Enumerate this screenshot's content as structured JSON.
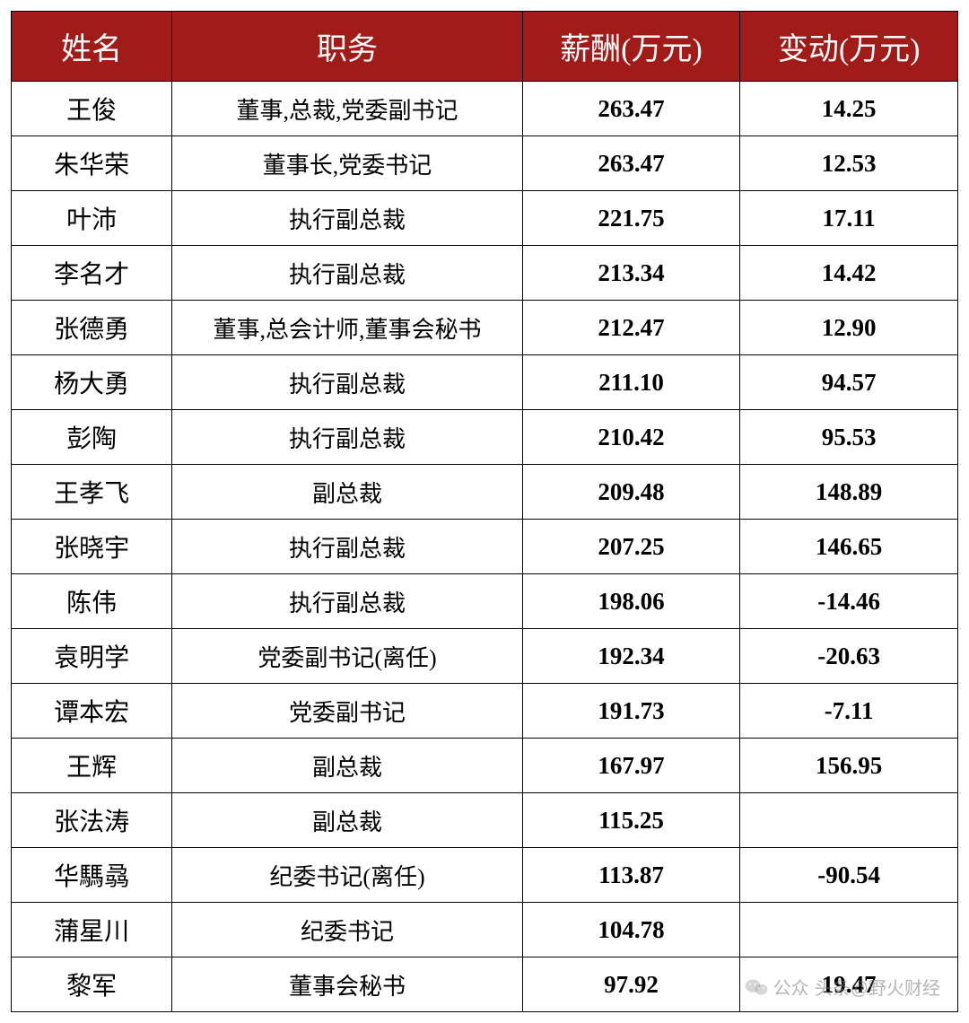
{
  "table": {
    "header_bg": "#a11c18",
    "header_fg": "#ffffff",
    "border_color": "#000000",
    "cell_bg": "#ffffff",
    "header_fontsize": 34,
    "name_fontsize": 28,
    "position_fontsize": 26,
    "number_fontsize": 27,
    "col_widths_pct": [
      17,
      37,
      23,
      23
    ],
    "columns": [
      "姓名",
      "职务",
      "薪酬(万元)",
      "变动(万元)"
    ],
    "rows": [
      {
        "name": "王俊",
        "position": "董事,总裁,党委副书记",
        "salary": "263.47",
        "change": "14.25"
      },
      {
        "name": "朱华荣",
        "position": "董事长,党委书记",
        "salary": "263.47",
        "change": "12.53"
      },
      {
        "name": "叶沛",
        "position": "执行副总裁",
        "salary": "221.75",
        "change": "17.11"
      },
      {
        "name": "李名才",
        "position": "执行副总裁",
        "salary": "213.34",
        "change": "14.42"
      },
      {
        "name": "张德勇",
        "position": "董事,总会计师,董事会秘书",
        "salary": "212.47",
        "change": "12.90"
      },
      {
        "name": "杨大勇",
        "position": "执行副总裁",
        "salary": "211.10",
        "change": "94.57"
      },
      {
        "name": "彭陶",
        "position": "执行副总裁",
        "salary": "210.42",
        "change": "95.53"
      },
      {
        "name": "王孝飞",
        "position": "副总裁",
        "salary": "209.48",
        "change": "148.89"
      },
      {
        "name": "张晓宇",
        "position": "执行副总裁",
        "salary": "207.25",
        "change": "146.65"
      },
      {
        "name": "陈伟",
        "position": "执行副总裁",
        "salary": "198.06",
        "change": "-14.46"
      },
      {
        "name": "袁明学",
        "position": "党委副书记(离任)",
        "salary": "192.34",
        "change": "-20.63"
      },
      {
        "name": "谭本宏",
        "position": "党委副书记",
        "salary": "191.73",
        "change": "-7.11"
      },
      {
        "name": "王辉",
        "position": "副总裁",
        "salary": "167.97",
        "change": "156.95"
      },
      {
        "name": "张法涛",
        "position": "副总裁",
        "salary": "115.25",
        "change": ""
      },
      {
        "name": "华騳骉",
        "position": "纪委书记(离任)",
        "salary": "113.87",
        "change": "-90.54"
      },
      {
        "name": "蒲星川",
        "position": "纪委书记",
        "salary": "104.78",
        "change": ""
      },
      {
        "name": "黎军",
        "position": "董事会秘书",
        "salary": "97.92",
        "change": "19.47"
      }
    ]
  },
  "watermark": {
    "text_left": "公众",
    "text_right": "头条@野火财经",
    "color": "rgba(120,120,120,0.55)"
  }
}
